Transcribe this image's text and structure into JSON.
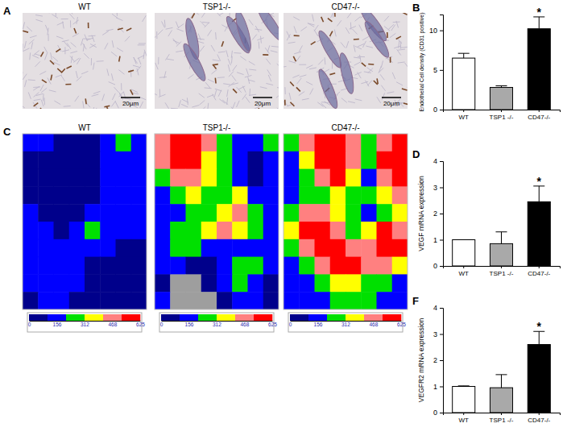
{
  "chart_data": [
    {
      "type": "image",
      "panel": "A",
      "title": "WT",
      "scale_bar": "20μm"
    },
    {
      "type": "image",
      "title": "TSP1-/-",
      "scale_bar": "20μm"
    },
    {
      "type": "image",
      "title": "CD47-/-",
      "scale_bar": "20μm"
    },
    {
      "type": "bar",
      "panel": "B",
      "y_label": "Endothelial Cell density (CD31 positive)",
      "categories": [
        "WT",
        "TSP1 -/-",
        "CD47-/-"
      ],
      "values": [
        6.5,
        2.8,
        10.2
      ],
      "errors": [
        0.6,
        0.2,
        1.5
      ],
      "colors": [
        "#ffffff",
        "#a9a9a9",
        "#000000"
      ],
      "ylim": [
        0,
        12
      ],
      "yticks": [
        0,
        5,
        10
      ],
      "annotations": [
        {
          "text": "*",
          "category": "CD47-/-"
        }
      ]
    },
    {
      "type": "heatmap",
      "panel": "C",
      "title": "WT",
      "cells": [
        [
          150,
          120,
          60,
          40,
          60,
          200,
          260,
          150
        ],
        [
          100,
          40,
          30,
          30,
          40,
          150,
          200,
          120
        ],
        [
          60,
          30,
          20,
          30,
          40,
          120,
          160,
          110
        ],
        [
          60,
          30,
          20,
          30,
          60,
          140,
          180,
          130
        ],
        [
          120,
          60,
          40,
          60,
          160,
          200,
          170,
          140
        ],
        [
          150,
          120,
          100,
          140,
          220,
          180,
          130,
          120
        ],
        [
          130,
          110,
          150,
          200,
          140,
          110,
          100,
          90
        ],
        [
          120,
          140,
          170,
          130,
          100,
          80,
          70,
          60
        ],
        [
          110,
          130,
          140,
          110,
          80,
          40,
          30,
          40
        ],
        [
          100,
          120,
          120,
          100,
          60,
          30,
          20,
          30
        ]
      ],
      "colorbar": {
        "range": [
          0,
          625
        ],
        "ticks": [
          0,
          156,
          312,
          468,
          625
        ],
        "colors": [
          "#00008b",
          "#0000ff",
          "#00e000",
          "#ffff00",
          "#ff8080",
          "#ff0000"
        ]
      }
    },
    {
      "type": "heatmap",
      "title": "TSP1-/-",
      "cells": [
        [
          500,
          560,
          600,
          450,
          300,
          200,
          150,
          250
        ],
        [
          480,
          600,
          620,
          400,
          250,
          140,
          80,
          200
        ],
        [
          300,
          450,
          500,
          350,
          250,
          200,
          100,
          150
        ],
        [
          200,
          300,
          350,
          280,
          300,
          350,
          200,
          140
        ],
        [
          160,
          200,
          250,
          300,
          400,
          500,
          300,
          180
        ],
        [
          180,
          220,
          300,
          350,
          450,
          400,
          250,
          150
        ],
        [
          200,
          250,
          280,
          200,
          180,
          200,
          180,
          120
        ],
        [
          150,
          160,
          100,
          80,
          200,
          300,
          250,
          150
        ],
        [
          100,
          null,
          null,
          60,
          150,
          250,
          200,
          100
        ],
        [
          120,
          null,
          null,
          null,
          100,
          150,
          120,
          80
        ]
      ],
      "colorbar": {
        "range": [
          0,
          625
        ],
        "ticks": [
          0,
          156,
          312,
          468,
          625
        ],
        "colors": [
          "#00008b",
          "#0000ff",
          "#00e000",
          "#ffff00",
          "#ff8080",
          "#ff0000"
        ]
      }
    },
    {
      "type": "heatmap",
      "title": "CD47-/-",
      "cells": [
        [
          250,
          450,
          600,
          620,
          500,
          300,
          500,
          600
        ],
        [
          200,
          400,
          620,
          620,
          450,
          250,
          550,
          620
        ],
        [
          150,
          300,
          500,
          550,
          350,
          200,
          450,
          600
        ],
        [
          200,
          250,
          300,
          350,
          300,
          250,
          350,
          450
        ],
        [
          300,
          450,
          500,
          400,
          250,
          200,
          300,
          350
        ],
        [
          350,
          550,
          620,
          500,
          300,
          350,
          550,
          500
        ],
        [
          250,
          450,
          600,
          620,
          500,
          450,
          620,
          550
        ],
        [
          200,
          300,
          450,
          600,
          620,
          500,
          450,
          350
        ],
        [
          150,
          200,
          250,
          350,
          400,
          300,
          250,
          200
        ],
        [
          120,
          150,
          200,
          250,
          300,
          250,
          200,
          150
        ]
      ],
      "colorbar": {
        "range": [
          0,
          625
        ],
        "ticks": [
          0,
          156,
          312,
          468,
          625
        ],
        "colors": [
          "#00008b",
          "#0000ff",
          "#00e000",
          "#ffff00",
          "#ff8080",
          "#ff0000"
        ]
      }
    },
    {
      "type": "bar",
      "panel": "D",
      "y_label": "VEGF mRNA expression",
      "categories": [
        "WT",
        "TSP1 -/-",
        "CD47-/-"
      ],
      "values": [
        1.0,
        0.85,
        2.45
      ],
      "errors": [
        0.0,
        0.45,
        0.6
      ],
      "colors": [
        "#ffffff",
        "#a9a9a9",
        "#000000"
      ],
      "ylim": [
        0,
        4
      ],
      "yticks": [
        0,
        1,
        2,
        3,
        4
      ],
      "annotations": [
        {
          "text": "*",
          "category": "CD47-/-"
        }
      ]
    },
    {
      "type": "bar",
      "panel": "F",
      "y_label": "VEGFR2 mRNA expression",
      "categories": [
        "WT",
        "TSP1 -/-",
        "CD47-/-"
      ],
      "values": [
        1.0,
        0.95,
        2.6
      ],
      "errors": [
        0.02,
        0.5,
        0.5
      ],
      "colors": [
        "#ffffff",
        "#a9a9a9",
        "#000000"
      ],
      "ylim": [
        0,
        4
      ],
      "yticks": [
        0,
        1,
        2,
        3,
        4
      ],
      "annotations": [
        {
          "text": "*",
          "category": "CD47-/-"
        }
      ]
    }
  ]
}
